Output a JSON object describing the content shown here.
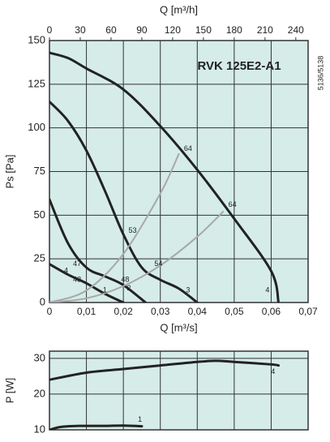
{
  "chart_data": [
    {
      "type": "line",
      "title": "RVK 125E2-A1",
      "side_note": "5136/5138",
      "xlabel": "Q [m³/s]",
      "ylabel": "Ps [Pa]",
      "x2label": "Q [m³/h]",
      "xlim": [
        0,
        0.07
      ],
      "xticks": [
        0,
        {
          "value": 0.01,
          "label": "0,01"
        },
        {
          "value": 0.02,
          "label": "0,02"
        },
        {
          "value": 0.03,
          "label": "0,03"
        },
        {
          "value": 0.04,
          "label": "0,04"
        },
        {
          "value": 0.05,
          "label": "0,05"
        },
        {
          "value": 0.06,
          "label": "0,06"
        },
        {
          "value": 0.07,
          "label": "0,07"
        }
      ],
      "x2lim": [
        0,
        252
      ],
      "x2ticks": [
        0,
        30,
        60,
        90,
        120,
        150,
        180,
        210,
        240
      ],
      "ylim": [
        0,
        150
      ],
      "yticks": [
        0,
        25,
        50,
        75,
        100,
        125,
        150
      ],
      "grid": true,
      "background": "#d5ece8",
      "series": [
        {
          "color": "#222222",
          "x": [
            0,
            0.005,
            0.01,
            0.02,
            0.03,
            0.04,
            0.05,
            0.06,
            0.062
          ],
          "values": [
            143,
            140,
            134,
            122,
            101,
            76,
            48,
            18,
            0
          ]
        },
        {
          "color": "#222222",
          "x": [
            0,
            0.005,
            0.01,
            0.015,
            0.02,
            0.025,
            0.03,
            0.035,
            0.04
          ],
          "values": [
            115,
            104,
            87,
            64,
            39,
            20,
            13,
            8,
            0
          ]
        },
        {
          "color": "#222222",
          "x": [
            0,
            0.005,
            0.01,
            0.015,
            0.02,
            0.026
          ],
          "values": [
            59,
            34,
            20,
            15,
            10,
            0
          ]
        },
        {
          "color": "#222222",
          "x": [
            0,
            0.005,
            0.01,
            0.015,
            0.02
          ],
          "values": [
            22,
            16,
            11,
            5,
            0
          ]
        },
        {
          "color": "#a8a8a8",
          "x": [
            0,
            0.01,
            0.02,
            0.03,
            0.035
          ],
          "values": [
            0,
            6.9,
            27.8,
            62.4,
            85
          ]
        },
        {
          "color": "#a8a8a8",
          "x": [
            0,
            0.01,
            0.02,
            0.03,
            0.04,
            0.047
          ],
          "values": [
            0,
            2.4,
            9.4,
            21.2,
            37.7,
            52
          ]
        }
      ],
      "annotations": [
        {
          "text": "64",
          "x": 0.0375,
          "y": 88
        },
        {
          "text": "64",
          "x": 0.0495,
          "y": 56
        },
        {
          "text": "53",
          "x": 0.0225,
          "y": 41
        },
        {
          "text": "54",
          "x": 0.0295,
          "y": 22
        },
        {
          "text": "47",
          "x": 0.0075,
          "y": 22
        },
        {
          "text": "4",
          "x": 0.0045,
          "y": 18
        },
        {
          "text": "43",
          "x": 0.0075,
          "y": 13
        },
        {
          "text": "48",
          "x": 0.0205,
          "y": 13
        },
        {
          "text": "1",
          "x": 0.015,
          "y": 7
        },
        {
          "text": "2",
          "x": 0.0215,
          "y": 8
        },
        {
          "text": "3",
          "x": 0.0375,
          "y": 7
        },
        {
          "text": "4",
          "x": 0.059,
          "y": 7
        }
      ]
    },
    {
      "type": "line",
      "ylabel": "P [W]",
      "xlim": [
        0,
        0.07
      ],
      "xticks": [
        0,
        0.01,
        0.02,
        0.03,
        0.04,
        0.05,
        0.06,
        0.07
      ],
      "ylim": [
        10,
        32
      ],
      "yticks": [
        10,
        20,
        30
      ],
      "grid": true,
      "background": "#d5ece8",
      "series": [
        {
          "color": "#222222",
          "x": [
            0,
            0.01,
            0.02,
            0.03,
            0.04,
            0.045,
            0.05,
            0.06,
            0.062
          ],
          "values": [
            24,
            26,
            27,
            28,
            29,
            29.3,
            29,
            28.3,
            28
          ]
        },
        {
          "color": "#222222",
          "x": [
            0,
            0.003,
            0.008,
            0.015,
            0.02,
            0.025
          ],
          "values": [
            10,
            10.8,
            11.1,
            11.1,
            11.2,
            11
          ]
        }
      ],
      "annotations": [
        {
          "text": "4",
          "x": 0.0605,
          "y": 26.2
        },
        {
          "text": "1",
          "x": 0.0245,
          "y": 12.8
        }
      ]
    }
  ]
}
